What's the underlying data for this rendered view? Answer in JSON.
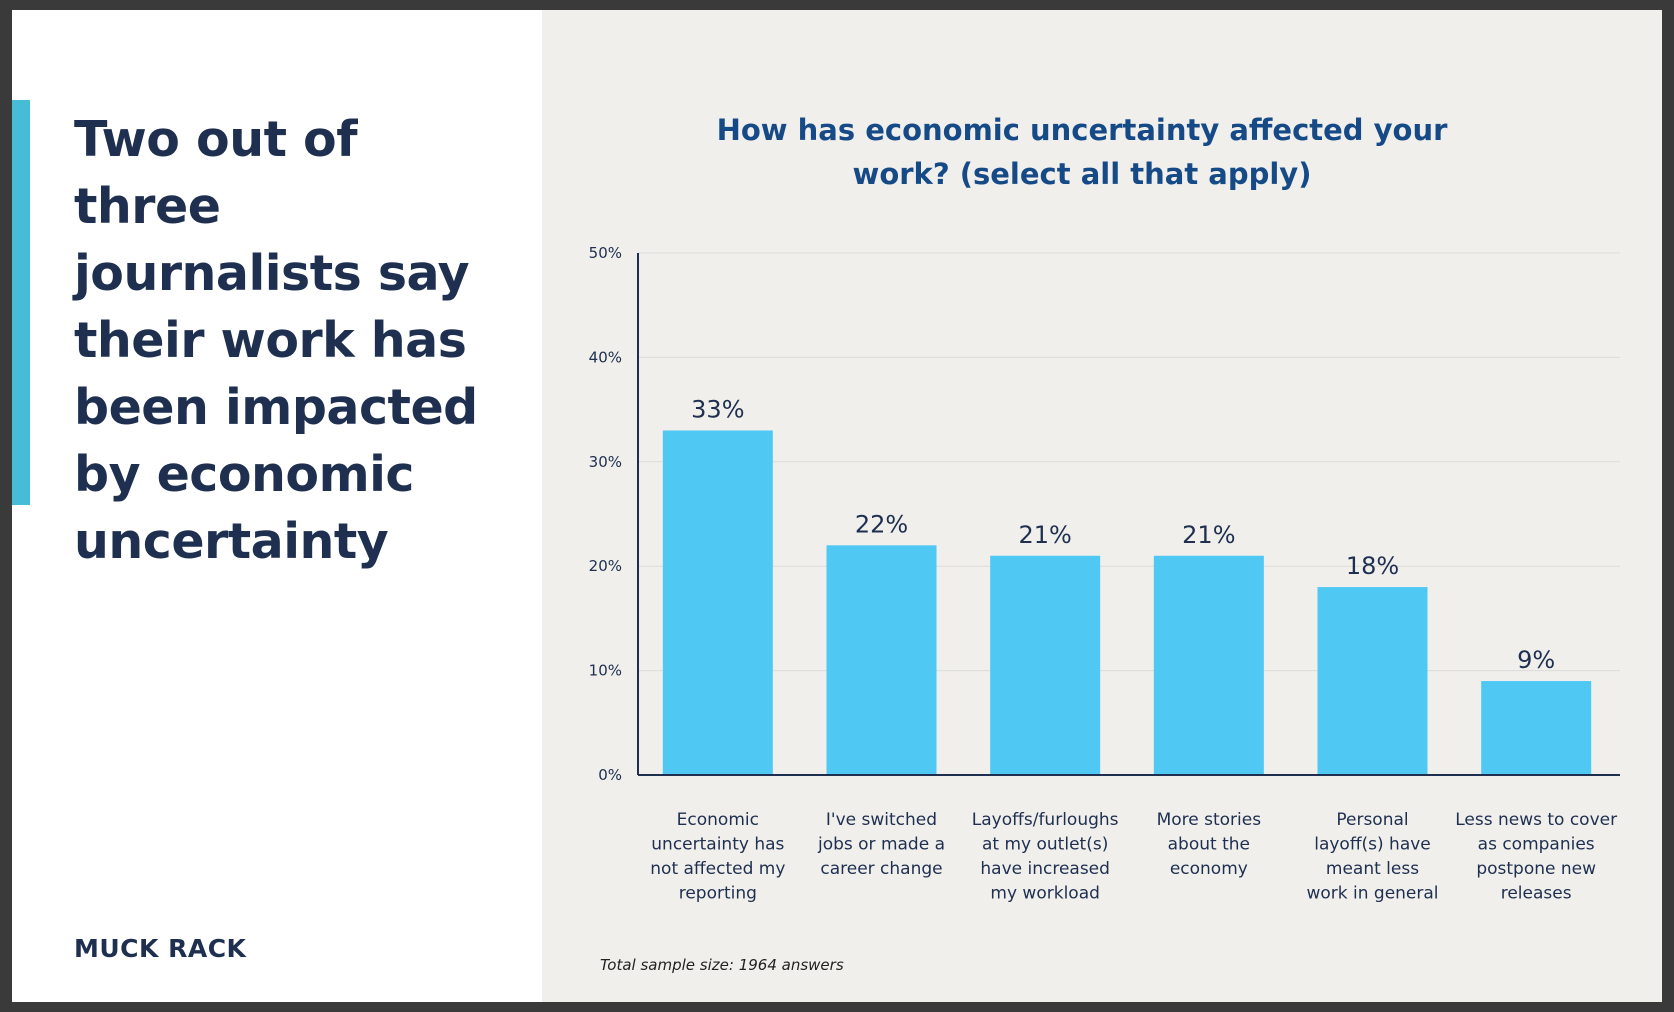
{
  "headline": "Two out of three journalists say their work has been impacted by economic uncertainty",
  "logo": "MUCK RACK",
  "note": "Total sample size: 1964 answers",
  "colors": {
    "bar": "#4fc8f4",
    "axis": "#1e2f4f",
    "grid": "#dcdcd8",
    "title": "#164a87",
    "text": "#1e2f4f"
  },
  "chart_data": {
    "type": "bar",
    "title": "How has economic uncertainty affected your work? (select all that apply)",
    "xlabel": "",
    "ylabel": "",
    "ylim": [
      0,
      50
    ],
    "yticks": [
      {
        "value": 0,
        "label": "0%"
      },
      {
        "value": 10,
        "label": "10%"
      },
      {
        "value": 20,
        "label": "20%"
      },
      {
        "value": 30,
        "label": "30%"
      },
      {
        "value": 40,
        "label": "40%"
      },
      {
        "value": 50,
        "label": "50%"
      }
    ],
    "grid": true,
    "categories": [
      "Economic uncertainty has not affected my reporting",
      "I've switched jobs or made a career change",
      "Layoffs/furloughs at my outlet(s) have increased my workload",
      "More stories about the economy",
      "Personal layoff(s) have meant less work in general",
      "Less news to cover as companies postpone new releases"
    ],
    "category_lines": [
      [
        "Economic",
        "uncertainty has",
        "not affected my",
        "reporting"
      ],
      [
        "I've switched",
        "jobs or made a",
        "career change"
      ],
      [
        "Layoffs/furloughs",
        "at my outlet(s)",
        "have increased",
        "my workload"
      ],
      [
        "More stories",
        "about the",
        "economy"
      ],
      [
        "Personal",
        "layoff(s) have",
        "meant less",
        "work in general"
      ],
      [
        "Less news to cover",
        "as companies",
        "postpone new",
        "releases"
      ]
    ],
    "values": [
      33,
      22,
      21,
      21,
      18,
      9
    ],
    "value_labels": [
      "33%",
      "22%",
      "21%",
      "21%",
      "18%",
      "9%"
    ]
  }
}
